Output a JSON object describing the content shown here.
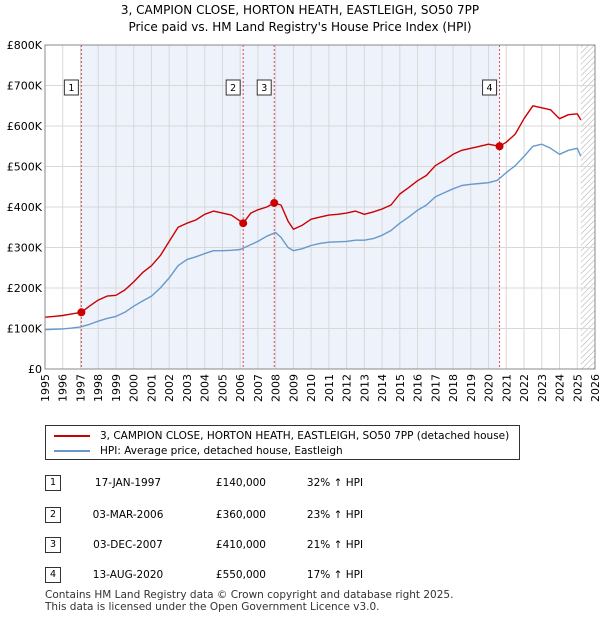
{
  "chart_data": {
    "type": "line",
    "title": "3, CAMPION CLOSE, HORTON HEATH, EASTLEIGH, SO50 7PP",
    "subtitle": "Price paid vs. HM Land Registry's House Price Index (HPI)",
    "xlabel": "",
    "ylabel": "",
    "xlim": [
      1995,
      2026
    ],
    "ylim": [
      0,
      800000
    ],
    "x_ticks": [
      "1995",
      "1996",
      "1997",
      "1998",
      "1999",
      "2000",
      "2001",
      "2002",
      "2003",
      "2004",
      "2005",
      "2006",
      "2007",
      "2008",
      "2009",
      "2010",
      "2011",
      "2012",
      "2013",
      "2014",
      "2015",
      "2016",
      "2017",
      "2018",
      "2019",
      "2020",
      "2021",
      "2022",
      "2023",
      "2024",
      "2025",
      "2026"
    ],
    "y_ticks": [
      {
        "value": 0,
        "label": "£0"
      },
      {
        "value": 100000,
        "label": "£100K"
      },
      {
        "value": 200000,
        "label": "£200K"
      },
      {
        "value": 300000,
        "label": "£300K"
      },
      {
        "value": 400000,
        "label": "£400K"
      },
      {
        "value": 500000,
        "label": "£500K"
      },
      {
        "value": 600000,
        "label": "£600K"
      },
      {
        "value": 700000,
        "label": "£700K"
      },
      {
        "value": 800000,
        "label": "£800K"
      }
    ],
    "grid": true,
    "data_end_x": 2025.2,
    "series": [
      {
        "name": "3, CAMPION CLOSE, HORTON HEATH, EASTLEIGH, SO50 7PP (detached house)",
        "color": "#cc0000",
        "x": [
          1995.0,
          1995.5,
          1996.0,
          1996.5,
          1997.05,
          1997.5,
          1998.0,
          1998.5,
          1999.0,
          1999.5,
          2000.0,
          2000.5,
          2001.0,
          2001.5,
          2002.0,
          2002.5,
          2003.0,
          2003.5,
          2004.0,
          2004.5,
          2005.0,
          2005.5,
          2006.17,
          2006.6,
          2007.0,
          2007.5,
          2007.92,
          2008.3,
          2008.7,
          2009.0,
          2009.5,
          2010.0,
          2010.5,
          2011.0,
          2011.5,
          2012.0,
          2012.5,
          2013.0,
          2013.5,
          2014.0,
          2014.5,
          2015.0,
          2015.5,
          2016.0,
          2016.5,
          2017.0,
          2017.5,
          2018.0,
          2018.5,
          2019.0,
          2019.5,
          2020.0,
          2020.62,
          2021.0,
          2021.5,
          2022.0,
          2022.5,
          2023.0,
          2023.5,
          2024.0,
          2024.5,
          2025.0,
          2025.2
        ],
        "y": [
          128000,
          130000,
          132000,
          136000,
          140000,
          155000,
          170000,
          180000,
          182000,
          195000,
          215000,
          238000,
          255000,
          280000,
          315000,
          350000,
          360000,
          368000,
          382000,
          390000,
          385000,
          380000,
          360000,
          385000,
          393000,
          400000,
          410000,
          405000,
          365000,
          345000,
          355000,
          370000,
          375000,
          380000,
          382000,
          385000,
          390000,
          382000,
          388000,
          395000,
          405000,
          432000,
          448000,
          465000,
          478000,
          502000,
          515000,
          530000,
          540000,
          545000,
          550000,
          555000,
          550000,
          560000,
          580000,
          618000,
          650000,
          645000,
          640000,
          618000,
          628000,
          630000,
          615000
        ]
      },
      {
        "name": "HPI: Average price, detached house, Eastleigh",
        "color": "#6699cc",
        "x": [
          1995.0,
          1995.5,
          1996.0,
          1996.5,
          1997.0,
          1997.5,
          1998.0,
          1998.5,
          1999.0,
          1999.5,
          2000.0,
          2000.5,
          2001.0,
          2001.5,
          2002.0,
          2002.5,
          2003.0,
          2003.5,
          2004.0,
          2004.5,
          2005.0,
          2005.5,
          2006.0,
          2006.5,
          2007.0,
          2007.5,
          2008.0,
          2008.3,
          2008.7,
          2009.0,
          2009.5,
          2010.0,
          2010.5,
          2011.0,
          2011.5,
          2012.0,
          2012.5,
          2013.0,
          2013.5,
          2014.0,
          2014.5,
          2015.0,
          2015.5,
          2016.0,
          2016.5,
          2017.0,
          2017.5,
          2018.0,
          2018.5,
          2019.0,
          2019.5,
          2020.0,
          2020.5,
          2021.0,
          2021.5,
          2022.0,
          2022.5,
          2023.0,
          2023.5,
          2024.0,
          2024.5,
          2025.0,
          2025.2
        ],
        "y": [
          97000,
          98000,
          99000,
          101000,
          104000,
          110000,
          118000,
          125000,
          130000,
          140000,
          155000,
          168000,
          180000,
          200000,
          225000,
          255000,
          270000,
          277000,
          285000,
          292000,
          292000,
          293000,
          295000,
          305000,
          315000,
          328000,
          337000,
          325000,
          300000,
          292000,
          297000,
          305000,
          310000,
          313000,
          314000,
          315000,
          318000,
          318000,
          322000,
          330000,
          342000,
          360000,
          375000,
          392000,
          405000,
          425000,
          435000,
          445000,
          453000,
          456000,
          458000,
          460000,
          466000,
          485000,
          502000,
          525000,
          550000,
          555000,
          545000,
          530000,
          540000,
          545000,
          525000
        ]
      }
    ],
    "sales": [
      {
        "label": "1",
        "x": 1997.05,
        "y": 140000
      },
      {
        "label": "2",
        "x": 2006.17,
        "y": 360000
      },
      {
        "label": "3",
        "x": 2007.92,
        "y": 410000
      },
      {
        "label": "4",
        "x": 2020.62,
        "y": 550000
      }
    ]
  },
  "legend": {
    "property": "3, CAMPION CLOSE, HORTON HEATH, EASTLEIGH, SO50 7PP (detached house)",
    "hpi": "HPI: Average price, detached house, Eastleigh",
    "property_color": "#cc0000",
    "hpi_color": "#6699cc"
  },
  "sales_table": [
    {
      "num": "1",
      "date": "17-JAN-1997",
      "price": "£140,000",
      "hpi": "32% ↑ HPI"
    },
    {
      "num": "2",
      "date": "03-MAR-2006",
      "price": "£360,000",
      "hpi": "23% ↑ HPI"
    },
    {
      "num": "3",
      "date": "03-DEC-2007",
      "price": "£410,000",
      "hpi": "21% ↑ HPI"
    },
    {
      "num": "4",
      "date": "13-AUG-2020",
      "price": "£550,000",
      "hpi": "17% ↑ HPI"
    }
  ],
  "footer": {
    "line1": "Contains HM Land Registry data © Crown copyright and database right 2025.",
    "line2": "This data is licensed under the Open Government Licence v3.0."
  }
}
